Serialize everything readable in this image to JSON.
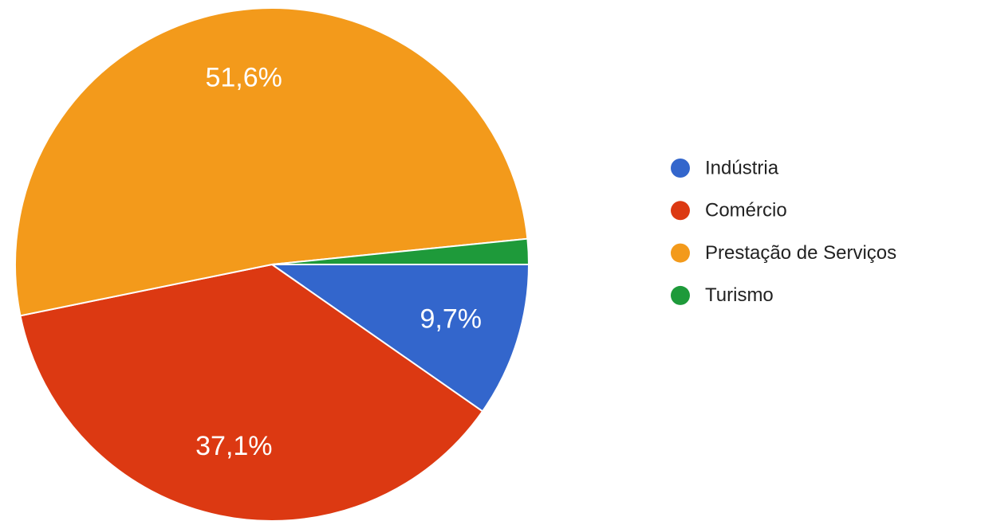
{
  "chart_data": {
    "type": "pie",
    "categories": [
      "Indústria",
      "Comércio",
      "Prestação de Serviços",
      "Turismo"
    ],
    "values": [
      9.7,
      37.1,
      51.6,
      1.6
    ],
    "value_labels": [
      "9,7%",
      "37,1%",
      "51,6%",
      null
    ],
    "colors": [
      "#3366cc",
      "#dc3912",
      "#f39a1b",
      "#1e9a3a"
    ],
    "legend": "right"
  }
}
